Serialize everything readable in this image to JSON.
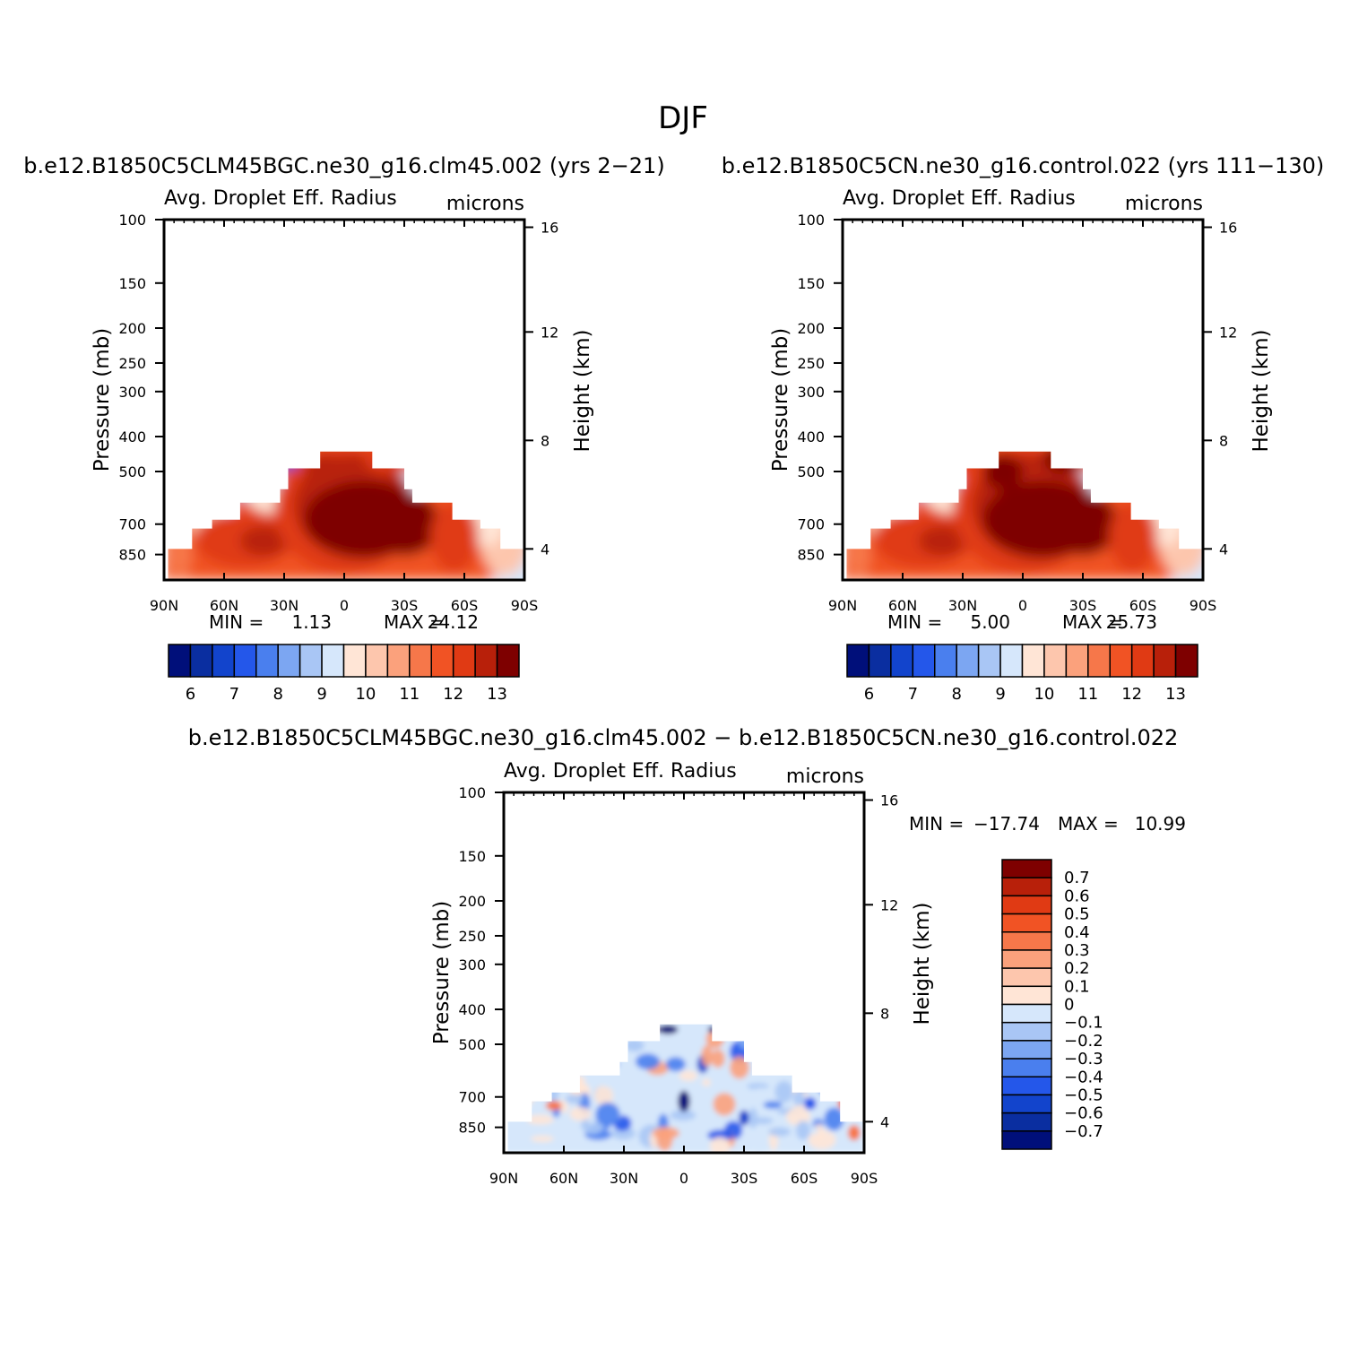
{
  "figure": {
    "season_title": "DJF"
  },
  "chart_data": [
    {
      "type": "heatmap",
      "case_title": "b.e12.B1850C5CLM45BGC.ne30_g16.clm45.002 (yrs 2-21)",
      "field_title": "Avg. Droplet Eff. Radius",
      "units": "microns",
      "ylabel": "Pressure (mb)",
      "ylabel_right": "Height (km)",
      "x_ticks": [
        "90N",
        "60N",
        "30N",
        "0",
        "30S",
        "60S",
        "90S"
      ],
      "xlim": [
        90,
        -90
      ],
      "y_ticks": [
        100,
        150,
        200,
        250,
        300,
        400,
        500,
        700,
        850
      ],
      "ylim": [
        100,
        1000
      ],
      "y_scale": "log",
      "height_ticks": [
        16,
        12,
        8,
        4
      ],
      "min_label": "MIN =",
      "min_value": "1.13",
      "max_label": "MAX =",
      "max_value": "24.12",
      "colorbar": {
        "orientation": "horizontal",
        "labels": [
          "6",
          "7",
          "8",
          "9",
          "10",
          "11",
          "12",
          "13"
        ],
        "colors": [
          "#000f7a",
          "#0a2ea0",
          "#1244cc",
          "#2457ea",
          "#4a7fee",
          "#7ca6f2",
          "#a9c6f5",
          "#d6e7fb",
          "#ffe5d6",
          "#fdc6ad",
          "#fba17c",
          "#f6774a",
          "#f15324",
          "#e03a14",
          "#b8200a",
          "#7e0000"
        ]
      }
    },
    {
      "type": "heatmap",
      "case_title": "b.e12.B1850C5CN.ne30_g16.control.022 (yrs 111-130)",
      "field_title": "Avg. Droplet Eff. Radius",
      "units": "microns",
      "ylabel": "Pressure (mb)",
      "ylabel_right": "Height (km)",
      "x_ticks": [
        "90N",
        "60N",
        "30N",
        "0",
        "30S",
        "60S",
        "90S"
      ],
      "xlim": [
        90,
        -90
      ],
      "y_ticks": [
        100,
        150,
        200,
        250,
        300,
        400,
        500,
        700,
        850
      ],
      "ylim": [
        100,
        1000
      ],
      "y_scale": "log",
      "height_ticks": [
        16,
        12,
        8,
        4
      ],
      "min_label": "MIN =",
      "min_value": "5.00",
      "max_label": "MAX =",
      "max_value": "25.73",
      "colorbar": {
        "orientation": "horizontal",
        "labels": [
          "6",
          "7",
          "8",
          "9",
          "10",
          "11",
          "12",
          "13"
        ],
        "colors": [
          "#000f7a",
          "#0a2ea0",
          "#1244cc",
          "#2457ea",
          "#4a7fee",
          "#7ca6f2",
          "#a9c6f5",
          "#d6e7fb",
          "#ffe5d6",
          "#fdc6ad",
          "#fba17c",
          "#f6774a",
          "#f15324",
          "#e03a14",
          "#b8200a",
          "#7e0000"
        ]
      }
    },
    {
      "type": "heatmap",
      "case_title": "b.e12.B1850C5CLM45BGC.ne30_g16.clm45.002 - b.e12.B1850C5CN.ne30_g16.control.022",
      "field_title": "Avg. Droplet Eff. Radius",
      "units": "microns",
      "ylabel": "Pressure (mb)",
      "ylabel_right": "Height (km)",
      "x_ticks": [
        "90N",
        "60N",
        "30N",
        "0",
        "30S",
        "60S",
        "90S"
      ],
      "xlim": [
        90,
        -90
      ],
      "y_ticks": [
        100,
        150,
        200,
        250,
        300,
        400,
        500,
        700,
        850
      ],
      "ylim": [
        100,
        1000
      ],
      "y_scale": "log",
      "height_ticks": [
        16,
        12,
        8,
        4
      ],
      "min_label": "MIN =",
      "min_value": "-17.74",
      "max_label": "MAX =",
      "max_value": "10.99",
      "colorbar": {
        "orientation": "vertical",
        "labels": [
          "0.7",
          "0.6",
          "0.5",
          "0.4",
          "0.3",
          "0.2",
          "0.1",
          "0",
          "-0.1",
          "-0.2",
          "-0.3",
          "-0.4",
          "-0.5",
          "-0.6",
          "-0.7"
        ],
        "colors": [
          "#7e0000",
          "#b8200a",
          "#e03a14",
          "#f15324",
          "#f6774a",
          "#fba17c",
          "#fdc6ad",
          "#ffe5d6",
          "#d6e7fb",
          "#a9c6f5",
          "#7ca6f2",
          "#4a7fee",
          "#2457ea",
          "#1244cc",
          "#0a2ea0",
          "#000f7a"
        ]
      }
    }
  ]
}
